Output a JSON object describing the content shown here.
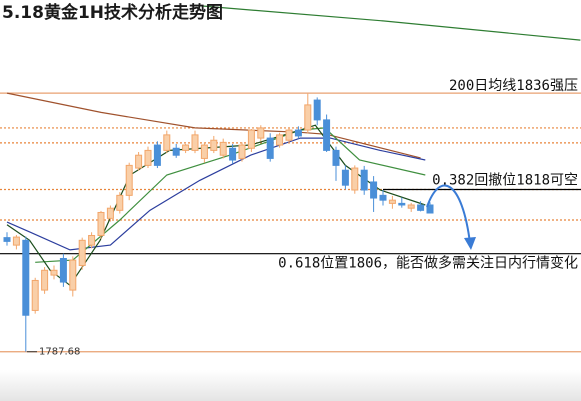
{
  "chart_data": {
    "type": "candlestick",
    "title": "5.18黄金1H技术分析走势图",
    "ylim": [
      1782.4,
      1853.4
    ],
    "up_color": "#f2a66a",
    "down_color": "#4a8fd8",
    "ohlc": [
      [
        1809.0,
        1810.0,
        1807.5,
        1808.3
      ],
      [
        1807.6,
        1809.5,
        1806.8,
        1809.1
      ],
      [
        1808.5,
        1809.2,
        1787.68,
        1794.5
      ],
      [
        1795.4,
        1801.5,
        1794.8,
        1801.0
      ],
      [
        1799.2,
        1803.5,
        1798.5,
        1802.9
      ],
      [
        1802.0,
        1803.8,
        1801.2,
        1802.9
      ],
      [
        1805.1,
        1806.0,
        1799.8,
        1800.7
      ],
      [
        1799.2,
        1805.5,
        1798.0,
        1804.8
      ],
      [
        1803.8,
        1809.0,
        1803.0,
        1808.5
      ],
      [
        1807.6,
        1810.0,
        1807.0,
        1809.4
      ],
      [
        1809.4,
        1814.0,
        1808.8,
        1813.7
      ],
      [
        1812.6,
        1815.0,
        1812.0,
        1814.5
      ],
      [
        1814.1,
        1817.5,
        1813.5,
        1816.9
      ],
      [
        1816.9,
        1823.0,
        1816.0,
        1822.5
      ],
      [
        1822.0,
        1825.0,
        1821.5,
        1824.4
      ],
      [
        1822.5,
        1826.0,
        1822.0,
        1825.3
      ],
      [
        1826.3,
        1827.0,
        1822.0,
        1822.5
      ],
      [
        1825.3,
        1829.0,
        1824.8,
        1828.2
      ],
      [
        1825.7,
        1826.5,
        1823.9,
        1824.4
      ],
      [
        1825.3,
        1826.5,
        1824.8,
        1826.3
      ],
      [
        1825.3,
        1829.0,
        1824.8,
        1828.2
      ],
      [
        1823.8,
        1826.8,
        1823.0,
        1826.3
      ],
      [
        1825.3,
        1828.0,
        1824.8,
        1827.2
      ],
      [
        1824.4,
        1827.5,
        1823.8,
        1826.8
      ],
      [
        1825.7,
        1826.5,
        1822.8,
        1823.5
      ],
      [
        1823.8,
        1826.8,
        1823.2,
        1826.3
      ],
      [
        1825.7,
        1829.3,
        1825.0,
        1829.1
      ],
      [
        1827.6,
        1830.0,
        1827.0,
        1829.5
      ],
      [
        1827.6,
        1828.5,
        1823.2,
        1823.8
      ],
      [
        1826.3,
        1828.6,
        1825.8,
        1828.2
      ],
      [
        1827.2,
        1829.5,
        1826.6,
        1829.1
      ],
      [
        1829.1,
        1829.8,
        1827.5,
        1828.0
      ],
      [
        1829.1,
        1835.9,
        1828.5,
        1833.8
      ],
      [
        1834.7,
        1835.2,
        1830.0,
        1831.0
      ],
      [
        1831.0,
        1832.0,
        1825.0,
        1825.3
      ],
      [
        1825.3,
        1826.0,
        1819.6,
        1822.5
      ],
      [
        1821.6,
        1822.5,
        1818.0,
        1818.8
      ],
      [
        1817.9,
        1822.5,
        1817.2,
        1822.0
      ],
      [
        1821.6,
        1822.4,
        1817.0,
        1817.9
      ],
      [
        1819.4,
        1820.5,
        1813.8,
        1816.4
      ],
      [
        1816.9,
        1817.9,
        1815.0,
        1816.0
      ],
      [
        1815.4,
        1816.8,
        1814.4,
        1816.0
      ],
      [
        1815.4,
        1816.5,
        1814.6,
        1815.1
      ],
      [
        1814.5,
        1815.5,
        1813.8,
        1815.1
      ],
      [
        1815.1,
        1815.8,
        1813.9,
        1814.1
      ],
      [
        1815.1,
        1815.6,
        1813.5,
        1813.6
      ]
    ],
    "lines": [
      {
        "color": "#2e7d32",
        "x": [
          20,
          40,
          61
        ],
        "values": [
          1852.4,
          1849.5,
          1845.9
        ]
      },
      {
        "color": "#a0522d",
        "x": [
          0,
          10,
          20,
          31,
          34,
          44
        ],
        "values": [
          1836.0,
          1832.4,
          1829.5,
          1828.7,
          1828.3,
          1823.9
        ]
      },
      {
        "color": "#2c3e9e",
        "x": [
          0,
          2.5,
          6.7,
          11,
          15.2,
          20.5,
          25.9,
          31.2,
          34.4,
          39.7,
          44.5
        ],
        "values": [
          1811.9,
          1810.0,
          1806.7,
          1807.6,
          1814.1,
          1819.7,
          1824.4,
          1827.6,
          1827.6,
          1825.3,
          1823.5
        ]
      },
      {
        "color": "#3f8f3f",
        "x": [
          3,
          7,
          12,
          17,
          23.7,
          31.2,
          33.8,
          37.5,
          44.5
        ],
        "values": [
          1804.4,
          1804.8,
          1812.3,
          1820.7,
          1824.4,
          1829.1,
          1829.5,
          1823.5,
          1820.7
        ]
      },
      {
        "color": "#1b4d1b",
        "x": [
          0,
          2.4,
          4.6,
          6.7,
          9.9,
          13.1,
          17.3,
          25.9,
          31.2,
          32.8,
          36,
          39.7,
          44.5
        ],
        "values": [
          1811.4,
          1808.5,
          1802.9,
          1800.1,
          1808.5,
          1820.7,
          1825.3,
          1826.3,
          1829.1,
          1830.0,
          1822.5,
          1817.9,
          1815.1
        ]
      }
    ],
    "levels": [
      {
        "value": 1836,
        "color": "#e8a070",
        "dash": false
      },
      {
        "value": 1829.5,
        "color": "#e8843a",
        "dash": true
      },
      {
        "value": 1826.7,
        "color": "#e8843a",
        "dash": true
      },
      {
        "value": 1818,
        "color": "#e8843a",
        "dash": true
      },
      {
        "value": 1812.3,
        "color": "#e8843a",
        "dash": true
      },
      {
        "value": 1818,
        "color": "#000000",
        "dash": false,
        "start": 40
      },
      {
        "value": 1806,
        "color": "#000000",
        "dash": false
      },
      {
        "value": 1787.68,
        "color": "#e8a070",
        "dash": false
      }
    ],
    "annotations": [
      {
        "text": "200日均线1836强压"
      },
      {
        "text": "0.382回撤位1818可空"
      },
      {
        "text": "0.618位置1806，能否做多需关注日内行情变化"
      }
    ]
  }
}
